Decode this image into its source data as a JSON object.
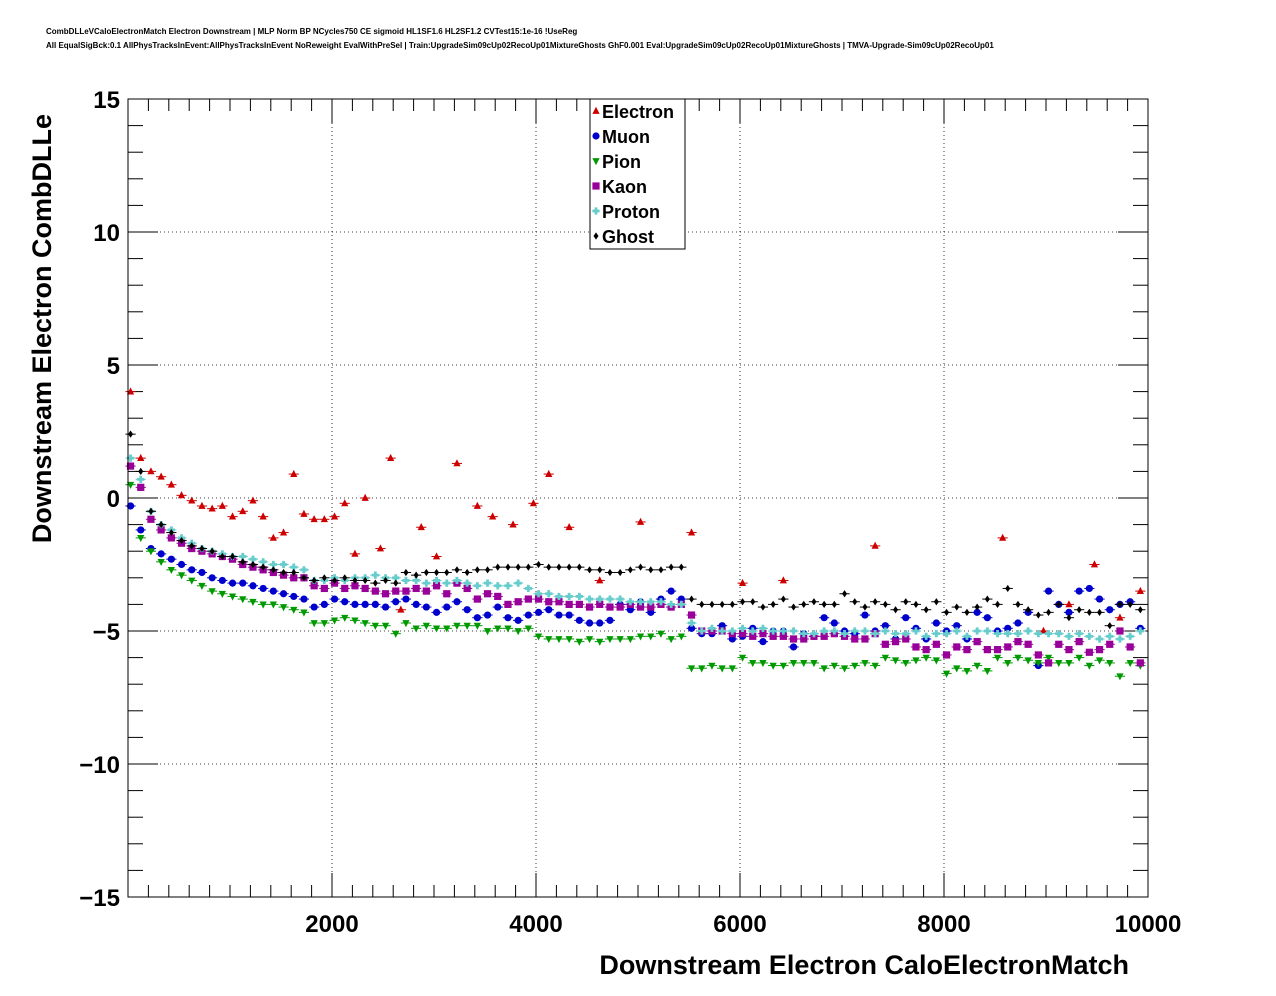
{
  "header": {
    "title_line1": "CombDLLeVCaloElectronMatch Electron Downstream | MLP Norm BP NCycles750 CE sigmoid HL1SF1.6 HL2SF1.2 CVTest15:1e-16 !UseReg",
    "title_line2": "All EqualSigBck:0.1 AllPhysTracksInEvent:AllPhysTracksInEvent NoReweight EvalWithPreSel | Train:UpgradeSim09cUp02RecoUp01MixtureGhosts GhF0.001 Eval:UpgradeSim09cUp02RecoUp01MixtureGhosts | TMVA-Upgrade-Sim09cUp02RecoUp01"
  },
  "chart_data": {
    "type": "scatter",
    "xlabel": "Downstream Electron CaloElectronMatch",
    "ylabel": "Downstream Electron CombDLLe",
    "xlim": [
      0,
      10000
    ],
    "ylim": [
      -15,
      15
    ],
    "xticks": [
      2000,
      4000,
      6000,
      8000,
      10000
    ],
    "xtick_labels": [
      "2000",
      "4000",
      "6000",
      "8000",
      "10000"
    ],
    "yticks": [
      -15,
      -10,
      -5,
      0,
      5,
      10,
      15
    ],
    "ytick_labels": [
      "−15",
      "−10",
      "−5",
      "0",
      "5",
      "10",
      "15"
    ],
    "grid": true,
    "legend_position": "top-center",
    "series": [
      {
        "name": "Electron",
        "color": "#cc0000",
        "marker": "triangle-up",
        "x": [
          25,
          125,
          225,
          325,
          425,
          525,
          625,
          725,
          825,
          925,
          1025,
          1125,
          1225,
          1325,
          1425,
          1525,
          1625,
          1725,
          1825,
          1925,
          2025,
          2125,
          2225,
          2325,
          2475,
          2575,
          2675,
          2875,
          3025,
          3225,
          3425,
          3575,
          3775,
          3975,
          4125,
          4325,
          4625,
          5025,
          5525,
          6025,
          6425,
          7325,
          8575,
          8975,
          9225,
          9475,
          9725,
          9925
        ],
        "y": [
          4.0,
          1.5,
          1.0,
          0.8,
          0.5,
          0.1,
          -0.1,
          -0.3,
          -0.4,
          -0.3,
          -0.7,
          -0.5,
          -0.1,
          -0.7,
          -1.5,
          -1.3,
          0.9,
          -0.6,
          -0.8,
          -0.8,
          -0.7,
          -0.2,
          -2.1,
          0.0,
          -1.9,
          1.5,
          -4.2,
          -1.1,
          -2.2,
          1.3,
          -0.3,
          -0.7,
          -1.0,
          -0.2,
          0.9,
          -1.1,
          -3.1,
          -0.9,
          -1.3,
          -3.2,
          -3.1,
          -1.8,
          -1.5,
          -5.0,
          -4.0,
          -2.5,
          -4.5,
          -3.5
        ]
      },
      {
        "name": "Muon",
        "color": "#0000cc",
        "marker": "circle",
        "x": [
          25,
          125,
          225,
          325,
          425,
          525,
          625,
          725,
          825,
          925,
          1025,
          1125,
          1225,
          1325,
          1425,
          1525,
          1625,
          1725,
          1825,
          1925,
          2025,
          2125,
          2225,
          2325,
          2425,
          2525,
          2625,
          2725,
          2825,
          2925,
          3025,
          3125,
          3225,
          3325,
          3425,
          3525,
          3625,
          3725,
          3825,
          3925,
          4025,
          4125,
          4225,
          4325,
          4425,
          4525,
          4625,
          4725,
          4825,
          4925,
          5025,
          5125,
          5225,
          5325,
          5425,
          5525,
          5625,
          5725,
          5825,
          5925,
          6025,
          6125,
          6225,
          6325,
          6425,
          6525,
          6625,
          6725,
          6825,
          6925,
          7025,
          7125,
          7225,
          7325,
          7425,
          7525,
          7625,
          7725,
          7825,
          7925,
          8025,
          8125,
          8225,
          8325,
          8425,
          8525,
          8625,
          8725,
          8825,
          8925,
          9025,
          9125,
          9225,
          9325,
          9425,
          9525,
          9625,
          9725,
          9825,
          9925
        ],
        "y": [
          -0.3,
          -1.2,
          -1.9,
          -2.1,
          -2.3,
          -2.5,
          -2.7,
          -2.8,
          -3.0,
          -3.1,
          -3.2,
          -3.2,
          -3.3,
          -3.4,
          -3.5,
          -3.6,
          -3.7,
          -3.8,
          -4.1,
          -4.0,
          -3.8,
          -3.9,
          -4.0,
          -4.0,
          -4.0,
          -4.1,
          -3.9,
          -3.8,
          -4.0,
          -4.1,
          -4.3,
          -4.1,
          -3.9,
          -4.2,
          -4.5,
          -4.4,
          -4.1,
          -4.5,
          -4.6,
          -4.4,
          -4.3,
          -4.2,
          -4.4,
          -4.4,
          -4.6,
          -4.7,
          -4.7,
          -4.6,
          -4.0,
          -4.2,
          -3.9,
          -4.3,
          -3.8,
          -3.5,
          -3.8,
          -4.9,
          -5.1,
          -5.1,
          -4.8,
          -5.3,
          -5.2,
          -4.9,
          -5.4,
          -5.0,
          -5.0,
          -5.6,
          -5.1,
          -5.2,
          -4.5,
          -4.7,
          -5.0,
          -5.1,
          -4.4,
          -5.0,
          -4.8,
          -5.3,
          -4.5,
          -4.9,
          -5.3,
          -4.7,
          -5.0,
          -4.8,
          -5.3,
          -4.3,
          -4.5,
          -5.0,
          -4.9,
          -4.7,
          -4.3,
          -6.3,
          -3.5,
          -4.0,
          -4.3,
          -3.5,
          -3.4,
          -3.8,
          -4.2,
          -4.0,
          -3.9,
          -4.9
        ]
      },
      {
        "name": "Pion",
        "color": "#009900",
        "marker": "triangle-down",
        "x": [
          25,
          125,
          225,
          325,
          425,
          525,
          625,
          725,
          825,
          925,
          1025,
          1125,
          1225,
          1325,
          1425,
          1525,
          1625,
          1725,
          1825,
          1925,
          2025,
          2125,
          2225,
          2325,
          2425,
          2525,
          2625,
          2725,
          2825,
          2925,
          3025,
          3125,
          3225,
          3325,
          3425,
          3525,
          3625,
          3725,
          3825,
          3925,
          4025,
          4125,
          4225,
          4325,
          4425,
          4525,
          4625,
          4725,
          4825,
          4925,
          5025,
          5125,
          5225,
          5325,
          5425,
          5525,
          5625,
          5725,
          5825,
          5925,
          6025,
          6125,
          6225,
          6325,
          6425,
          6525,
          6625,
          6725,
          6825,
          6925,
          7025,
          7125,
          7225,
          7325,
          7425,
          7525,
          7625,
          7725,
          7825,
          7925,
          8025,
          8125,
          8225,
          8325,
          8425,
          8525,
          8625,
          8725,
          8825,
          8925,
          9025,
          9125,
          9225,
          9325,
          9425,
          9525,
          9625,
          9725,
          9825,
          9925,
          10025
        ],
        "y": [
          0.5,
          -1.5,
          -2.0,
          -2.4,
          -2.7,
          -2.9,
          -3.1,
          -3.3,
          -3.5,
          -3.6,
          -3.7,
          -3.8,
          -3.9,
          -4.0,
          -4.0,
          -4.1,
          -4.2,
          -4.3,
          -4.7,
          -4.7,
          -4.6,
          -4.5,
          -4.6,
          -4.7,
          -4.8,
          -4.8,
          -5.1,
          -4.7,
          -4.9,
          -4.8,
          -4.9,
          -4.9,
          -4.8,
          -4.8,
          -4.8,
          -5.0,
          -4.9,
          -4.9,
          -5.0,
          -4.9,
          -5.2,
          -5.3,
          -5.3,
          -5.3,
          -5.4,
          -5.3,
          -5.4,
          -5.3,
          -5.3,
          -5.3,
          -5.2,
          -5.2,
          -5.1,
          -5.3,
          -5.2,
          -6.4,
          -6.4,
          -6.3,
          -6.4,
          -6.4,
          -6.0,
          -6.2,
          -6.2,
          -6.3,
          -6.3,
          -6.2,
          -6.2,
          -6.2,
          -6.4,
          -6.3,
          -6.4,
          -6.3,
          -6.2,
          -6.3,
          -6.0,
          -6.1,
          -6.2,
          -6.1,
          -6.0,
          -6.1,
          -6.6,
          -6.4,
          -6.5,
          -6.3,
          -6.5,
          -6.0,
          -6.2,
          -6.0,
          -6.1,
          -6.2,
          -6.0,
          -6.2,
          -6.2,
          -6.0,
          -6.3,
          -6.1,
          -6.2,
          -6.7,
          -6.2,
          -6.3,
          -6.1
        ]
      },
      {
        "name": "Kaon",
        "color": "#990099",
        "marker": "square",
        "x": [
          25,
          125,
          225,
          325,
          425,
          525,
          625,
          725,
          825,
          925,
          1025,
          1125,
          1225,
          1325,
          1425,
          1525,
          1625,
          1725,
          1825,
          1925,
          2025,
          2125,
          2225,
          2325,
          2425,
          2525,
          2625,
          2725,
          2825,
          2925,
          3025,
          3125,
          3225,
          3325,
          3425,
          3525,
          3625,
          3725,
          3825,
          3925,
          4025,
          4125,
          4225,
          4325,
          4425,
          4525,
          4625,
          4725,
          4825,
          4925,
          5025,
          5125,
          5225,
          5325,
          5425,
          5525,
          5625,
          5725,
          5825,
          5925,
          6025,
          6125,
          6225,
          6325,
          6425,
          6525,
          6625,
          6725,
          6825,
          6925,
          7025,
          7125,
          7225,
          7325,
          7425,
          7525,
          7625,
          7725,
          7825,
          7925,
          8025,
          8125,
          8225,
          8325,
          8425,
          8525,
          8625,
          8725,
          8825,
          8925,
          9025,
          9125,
          9225,
          9325,
          9425,
          9525,
          9625,
          9725,
          9825,
          9925
        ],
        "y": [
          1.2,
          0.4,
          -0.8,
          -1.2,
          -1.5,
          -1.7,
          -1.9,
          -2.0,
          -2.1,
          -2.2,
          -2.3,
          -2.5,
          -2.6,
          -2.7,
          -2.8,
          -2.9,
          -3.0,
          -3.0,
          -3.3,
          -3.4,
          -3.2,
          -3.4,
          -3.3,
          -3.4,
          -3.5,
          -3.6,
          -3.5,
          -3.5,
          -3.4,
          -3.5,
          -3.3,
          -3.6,
          -3.2,
          -3.4,
          -3.8,
          -3.6,
          -3.7,
          -4.0,
          -3.9,
          -3.8,
          -3.8,
          -3.9,
          -3.9,
          -4.0,
          -4.0,
          -4.1,
          -4.0,
          -4.1,
          -4.1,
          -4.0,
          -4.1,
          -4.1,
          -4.0,
          -4.1,
          -4.0,
          -4.4,
          -5.0,
          -5.0,
          -5.0,
          -5.1,
          -5.1,
          -5.2,
          -5.1,
          -5.2,
          -5.2,
          -5.3,
          -5.3,
          -5.2,
          -5.2,
          -5.1,
          -5.2,
          -5.3,
          -5.3,
          -5.1,
          -5.5,
          -5.4,
          -5.3,
          -5.6,
          -5.7,
          -5.5,
          -5.9,
          -5.6,
          -5.7,
          -5.4,
          -5.7,
          -5.7,
          -5.6,
          -5.4,
          -5.5,
          -5.9,
          -6.2,
          -5.5,
          -5.7,
          -5.4,
          -5.8,
          -5.7,
          -5.5,
          -5.0,
          -5.6,
          -6.2
        ]
      },
      {
        "name": "Proton",
        "color": "#66cccc",
        "marker": "cross",
        "x": [
          25,
          125,
          225,
          325,
          425,
          525,
          625,
          725,
          825,
          925,
          1025,
          1125,
          1225,
          1325,
          1425,
          1525,
          1625,
          1725,
          1825,
          1925,
          2025,
          2125,
          2225,
          2325,
          2425,
          2525,
          2625,
          2725,
          2825,
          2925,
          3025,
          3125,
          3225,
          3325,
          3425,
          3525,
          3625,
          3725,
          3825,
          3925,
          4025,
          4125,
          4225,
          4325,
          4425,
          4525,
          4625,
          4725,
          4825,
          4925,
          5025,
          5125,
          5225,
          5325,
          5425,
          5525,
          5625,
          5725,
          5825,
          5925,
          6025,
          6125,
          6225,
          6325,
          6425,
          6525,
          6625,
          6725,
          6825,
          6925,
          7025,
          7125,
          7225,
          7325,
          7425,
          7525,
          7625,
          7725,
          7825,
          7925,
          8025,
          8125,
          8225,
          8325,
          8425,
          8525,
          8625,
          8725,
          8825,
          8925,
          9025,
          9125,
          9225,
          9325,
          9425,
          9525,
          9625,
          9725,
          9825,
          9925
        ],
        "y": [
          1.5,
          0.7,
          -0.5,
          -1.0,
          -1.2,
          -1.5,
          -1.7,
          -1.9,
          -2.0,
          -2.1,
          -2.2,
          -2.2,
          -2.3,
          -2.4,
          -2.5,
          -2.5,
          -2.6,
          -2.7,
          -3.1,
          -3.1,
          -3.0,
          -3.1,
          -3.0,
          -3.0,
          -2.9,
          -3.0,
          -3.0,
          -3.1,
          -3.1,
          -3.2,
          -3.1,
          -3.2,
          -3.1,
          -3.2,
          -3.3,
          -3.2,
          -3.3,
          -3.3,
          -3.2,
          -3.4,
          -3.6,
          -3.6,
          -3.7,
          -3.7,
          -3.7,
          -3.8,
          -3.8,
          -3.8,
          -3.8,
          -3.9,
          -3.9,
          -3.9,
          -3.9,
          -4.0,
          -4.0,
          -4.7,
          -5.0,
          -4.9,
          -5.0,
          -5.0,
          -4.9,
          -5.0,
          -4.9,
          -5.0,
          -5.0,
          -5.0,
          -5.1,
          -5.1,
          -5.0,
          -5.0,
          -5.1,
          -5.0,
          -5.0,
          -5.1,
          -5.0,
          -5.1,
          -5.1,
          -5.0,
          -5.2,
          -5.1,
          -5.1,
          -5.0,
          -5.2,
          -5.0,
          -5.0,
          -5.1,
          -5.1,
          -5.1,
          -5.0,
          -5.1,
          -5.1,
          -5.1,
          -5.2,
          -5.1,
          -5.2,
          -5.3,
          -5.2,
          -5.3,
          -5.2,
          -5.0
        ]
      },
      {
        "name": "Ghost",
        "color": "#000000",
        "marker": "diamond",
        "x": [
          25,
          125,
          225,
          325,
          425,
          525,
          625,
          725,
          825,
          925,
          1025,
          1125,
          1225,
          1325,
          1425,
          1525,
          1625,
          1725,
          1825,
          1925,
          2025,
          2125,
          2225,
          2325,
          2425,
          2525,
          2625,
          2725,
          2825,
          2925,
          3025,
          3125,
          3225,
          3325,
          3425,
          3525,
          3625,
          3725,
          3825,
          3925,
          4025,
          4125,
          4225,
          4325,
          4425,
          4525,
          4625,
          4725,
          4825,
          4925,
          5025,
          5125,
          5225,
          5325,
          5425,
          5525,
          5625,
          5725,
          5825,
          5925,
          6025,
          6125,
          6225,
          6325,
          6425,
          6525,
          6625,
          6725,
          6825,
          6925,
          7025,
          7125,
          7225,
          7325,
          7425,
          7525,
          7625,
          7725,
          7825,
          7925,
          8025,
          8125,
          8225,
          8325,
          8425,
          8525,
          8625,
          8725,
          8825,
          8925,
          9025,
          9125,
          9225,
          9325,
          9425,
          9525,
          9625,
          9725,
          9825,
          9925
        ],
        "y": [
          2.4,
          1.0,
          -0.5,
          -1.0,
          -1.3,
          -1.6,
          -1.8,
          -1.9,
          -2.0,
          -2.2,
          -2.2,
          -2.4,
          -2.5,
          -2.6,
          -2.7,
          -2.8,
          -2.8,
          -3.0,
          -3.1,
          -3.0,
          -3.1,
          -3.0,
          -3.1,
          -3.1,
          -3.2,
          -3.1,
          -3.2,
          -2.8,
          -2.9,
          -2.8,
          -2.8,
          -2.8,
          -2.7,
          -2.8,
          -2.7,
          -2.7,
          -2.6,
          -2.6,
          -2.6,
          -2.6,
          -2.5,
          -2.6,
          -2.6,
          -2.6,
          -2.6,
          -2.7,
          -2.7,
          -2.8,
          -2.8,
          -2.7,
          -2.6,
          -2.7,
          -2.7,
          -2.6,
          -2.6,
          -3.8,
          -4.0,
          -4.0,
          -4.0,
          -4.0,
          -3.9,
          -3.9,
          -4.1,
          -4.0,
          -3.8,
          -4.1,
          -4.0,
          -3.9,
          -4.0,
          -4.0,
          -3.6,
          -3.9,
          -4.1,
          -3.9,
          -4.0,
          -4.2,
          -3.9,
          -4.0,
          -4.2,
          -3.9,
          -4.3,
          -4.1,
          -4.3,
          -4.1,
          -3.8,
          -4.0,
          -3.4,
          -4.0,
          -4.2,
          -4.4,
          -4.3,
          -4.0,
          -4.5,
          -4.2,
          -4.3,
          -4.3,
          -4.8,
          -4.0,
          -4.0,
          -4.2
        ]
      }
    ]
  }
}
